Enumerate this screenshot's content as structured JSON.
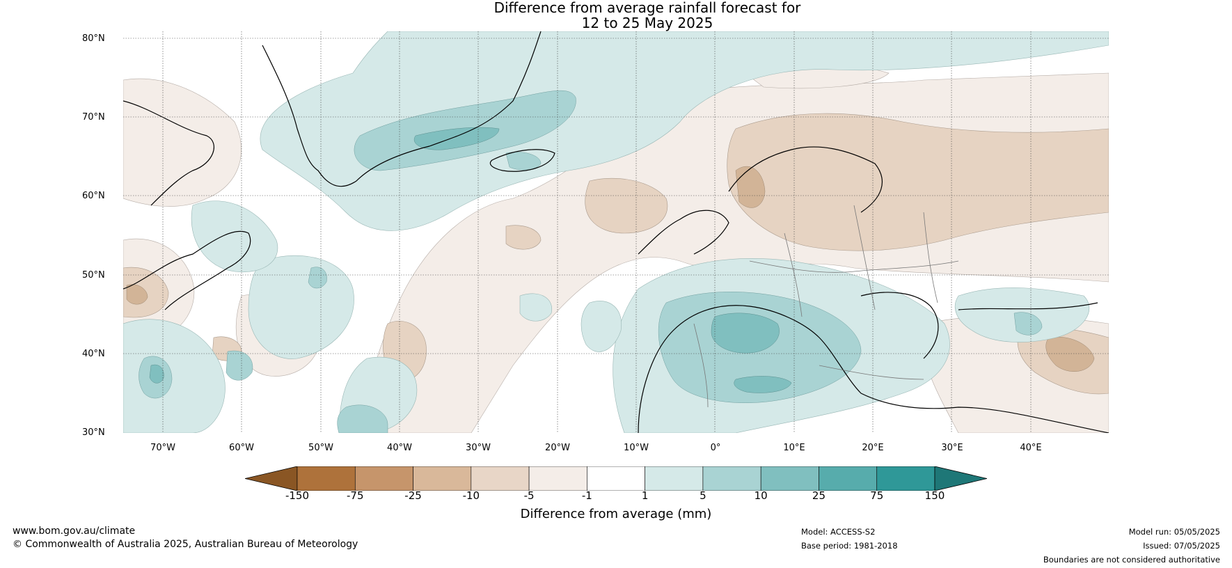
{
  "title_line1": "Difference from average rainfall forecast for",
  "title_line2": "12 to 25 May 2025",
  "lat_labels": [
    "80°N",
    "70°N",
    "60°N",
    "50°N",
    "40°N",
    "30°N"
  ],
  "lon_labels": [
    "70°W",
    "60°W",
    "50°W",
    "40°W",
    "30°W",
    "20°W",
    "10°W",
    "0°",
    "10°E",
    "20°E",
    "30°E",
    "40°E"
  ],
  "colorbar": {
    "ticks": [
      "-150",
      "-75",
      "-25",
      "-10",
      "-5",
      "-1",
      "1",
      "5",
      "10",
      "25",
      "75",
      "150"
    ],
    "colors": [
      "#8a5624",
      "#ae723b",
      "#c6956b",
      "#d9b89a",
      "#e8d6c7",
      "#f4ede8",
      "#ffffff",
      "#d5e9e8",
      "#a9d3d3",
      "#80bfbf",
      "#57acac",
      "#2f9898",
      "#1e7777"
    ],
    "label": "Difference from average (mm)"
  },
  "footer": {
    "website": "www.bom.gov.au/climate",
    "copyright": "© Commonwealth of Australia 2025, Australian Bureau of Meteorology",
    "model": "Model: ACCESS-S2",
    "base_period": "Base period: 1981-2018",
    "model_run": "Model run: 05/05/2025",
    "issued": "Issued: 07/05/2025",
    "disclaimer": "Boundaries are not considered authoritative"
  }
}
